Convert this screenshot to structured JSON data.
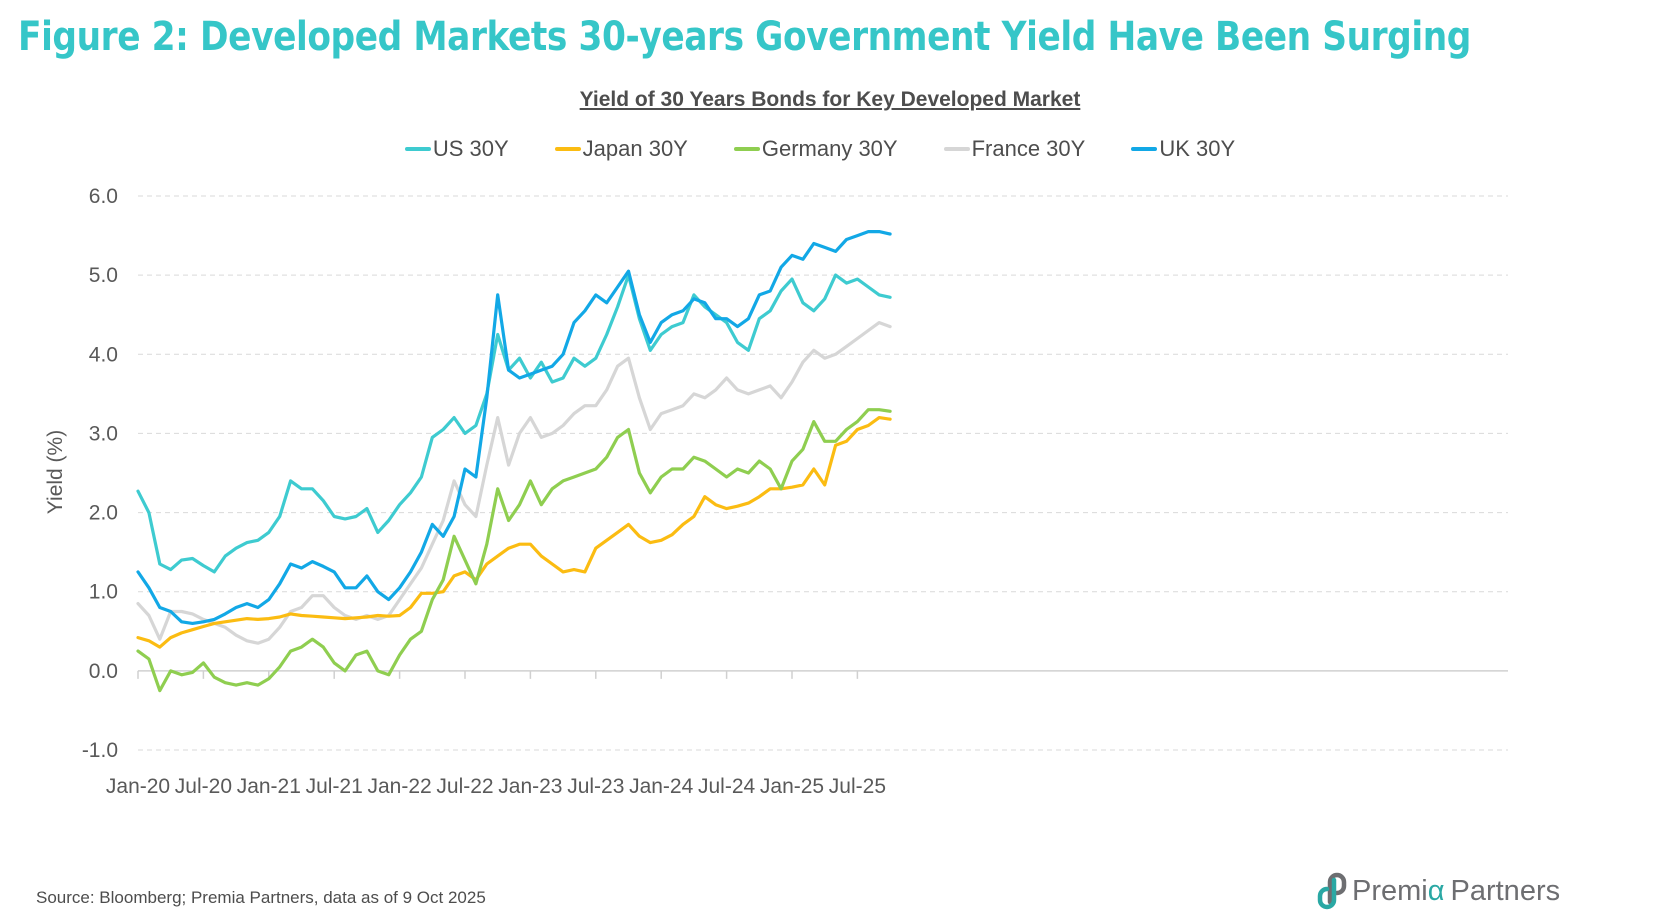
{
  "header": {
    "title": "Figure 2: Developed Markets 30-years Government Yield Have Been Surging"
  },
  "footer": {
    "source": "Source: Bloomberg; Premia Partners, data as of 9 Oct 2025",
    "logo_part1": "Premi",
    "logo_alpha": "α",
    "logo_part2": "Partners"
  },
  "chart_data": {
    "type": "line",
    "title": "Yield of 30 Years Bonds for Key Developed Market",
    "xlabel": "",
    "ylabel": "Yield (%)",
    "ylim": [
      -1.0,
      6.0
    ],
    "yticks": [
      -1.0,
      0.0,
      1.0,
      2.0,
      3.0,
      4.0,
      5.0,
      6.0
    ],
    "ytick_labels": [
      "-1.0",
      "0.0",
      "1.0",
      "2.0",
      "3.0",
      "4.0",
      "5.0",
      "6.0"
    ],
    "xtick_labels": [
      "Jan-20",
      "Jul-20",
      "Jan-21",
      "Jul-21",
      "Jan-22",
      "Jul-22",
      "Jan-23",
      "Jul-23",
      "Jan-24",
      "Jul-24",
      "Jan-25",
      "Jul-25"
    ],
    "grid": "horizontal-dashed",
    "legend_position": "top-center",
    "x": [
      "Jan-20",
      "Feb-20",
      "Mar-20",
      "Apr-20",
      "May-20",
      "Jun-20",
      "Jul-20",
      "Aug-20",
      "Sep-20",
      "Oct-20",
      "Nov-20",
      "Dec-20",
      "Jan-21",
      "Feb-21",
      "Mar-21",
      "Apr-21",
      "May-21",
      "Jun-21",
      "Jul-21",
      "Aug-21",
      "Sep-21",
      "Oct-21",
      "Nov-21",
      "Dec-21",
      "Jan-22",
      "Feb-22",
      "Mar-22",
      "Apr-22",
      "May-22",
      "Jun-22",
      "Jul-22",
      "Aug-22",
      "Sep-22",
      "Oct-22",
      "Nov-22",
      "Dec-22",
      "Jan-23",
      "Feb-23",
      "Mar-23",
      "Apr-23",
      "May-23",
      "Jun-23",
      "Jul-23",
      "Aug-23",
      "Sep-23",
      "Oct-23",
      "Nov-23",
      "Dec-23",
      "Jan-24",
      "Feb-24",
      "Mar-24",
      "Apr-24",
      "May-24",
      "Jun-24",
      "Jul-24",
      "Aug-24",
      "Sep-24",
      "Oct-24",
      "Nov-24",
      "Dec-24",
      "Jan-25",
      "Feb-25",
      "Mar-25",
      "Apr-25",
      "May-25",
      "Jun-25",
      "Jul-25",
      "Aug-25",
      "Sep-25",
      "Oct-25"
    ],
    "series": [
      {
        "name": "US 30Y",
        "color": "#3ecbd0",
        "values": [
          2.27,
          2.0,
          1.35,
          1.28,
          1.4,
          1.42,
          1.33,
          1.25,
          1.45,
          1.55,
          1.62,
          1.65,
          1.75,
          1.95,
          2.4,
          2.3,
          2.3,
          2.15,
          1.95,
          1.92,
          1.95,
          2.05,
          1.75,
          1.9,
          2.1,
          2.25,
          2.45,
          2.95,
          3.05,
          3.2,
          3.0,
          3.1,
          3.5,
          4.25,
          3.8,
          3.95,
          3.7,
          3.9,
          3.65,
          3.7,
          3.95,
          3.85,
          3.95,
          4.25,
          4.6,
          5.0,
          4.45,
          4.05,
          4.25,
          4.35,
          4.4,
          4.75,
          4.6,
          4.5,
          4.4,
          4.15,
          4.05,
          4.45,
          4.55,
          4.8,
          4.95,
          4.65,
          4.55,
          4.7,
          5.0,
          4.9,
          4.95,
          4.85,
          4.75,
          4.72
        ]
      },
      {
        "name": "Japan 30Y",
        "color": "#fbbc12",
        "values": [
          0.42,
          0.38,
          0.3,
          0.42,
          0.48,
          0.52,
          0.56,
          0.6,
          0.62,
          0.64,
          0.66,
          0.65,
          0.66,
          0.68,
          0.72,
          0.7,
          0.69,
          0.68,
          0.67,
          0.66,
          0.67,
          0.68,
          0.7,
          0.69,
          0.7,
          0.8,
          0.98,
          0.98,
          1.0,
          1.2,
          1.25,
          1.15,
          1.35,
          1.45,
          1.55,
          1.6,
          1.6,
          1.45,
          1.35,
          1.25,
          1.28,
          1.25,
          1.55,
          1.65,
          1.75,
          1.85,
          1.7,
          1.62,
          1.65,
          1.72,
          1.85,
          1.95,
          2.2,
          2.1,
          2.05,
          2.08,
          2.12,
          2.2,
          2.3,
          2.3,
          2.32,
          2.35,
          2.55,
          2.35,
          2.85,
          2.9,
          3.05,
          3.1,
          3.2,
          3.18
        ]
      },
      {
        "name": "Germany 30Y",
        "color": "#8fce50",
        "values": [
          0.25,
          0.15,
          -0.25,
          0.0,
          -0.05,
          -0.02,
          0.1,
          -0.08,
          -0.15,
          -0.18,
          -0.15,
          -0.18,
          -0.1,
          0.05,
          0.25,
          0.3,
          0.4,
          0.3,
          0.1,
          0.0,
          0.2,
          0.25,
          0.0,
          -0.05,
          0.2,
          0.4,
          0.5,
          0.9,
          1.15,
          1.7,
          1.4,
          1.1,
          1.6,
          2.3,
          1.9,
          2.1,
          2.4,
          2.1,
          2.3,
          2.4,
          2.45,
          2.5,
          2.55,
          2.7,
          2.95,
          3.05,
          2.5,
          2.25,
          2.45,
          2.55,
          2.55,
          2.7,
          2.65,
          2.55,
          2.45,
          2.55,
          2.5,
          2.65,
          2.55,
          2.3,
          2.65,
          2.8,
          3.15,
          2.9,
          2.9,
          3.05,
          3.15,
          3.3,
          3.3,
          3.28
        ]
      },
      {
        "name": "France 30Y",
        "color": "#d6d6d6",
        "values": [
          0.85,
          0.7,
          0.4,
          0.75,
          0.75,
          0.72,
          0.65,
          0.6,
          0.55,
          0.45,
          0.38,
          0.35,
          0.4,
          0.55,
          0.75,
          0.8,
          0.95,
          0.95,
          0.8,
          0.7,
          0.65,
          0.7,
          0.65,
          0.7,
          0.9,
          1.1,
          1.3,
          1.6,
          1.9,
          2.4,
          2.1,
          1.95,
          2.6,
          3.2,
          2.6,
          3.0,
          3.2,
          2.95,
          3.0,
          3.1,
          3.25,
          3.35,
          3.35,
          3.55,
          3.85,
          3.95,
          3.45,
          3.05,
          3.25,
          3.3,
          3.35,
          3.5,
          3.45,
          3.55,
          3.7,
          3.55,
          3.5,
          3.55,
          3.6,
          3.45,
          3.65,
          3.9,
          4.05,
          3.95,
          4.0,
          4.1,
          4.2,
          4.3,
          4.4,
          4.35
        ]
      },
      {
        "name": "UK 30Y",
        "color": "#12a8e6",
        "values": [
          1.25,
          1.05,
          0.8,
          0.75,
          0.62,
          0.6,
          0.62,
          0.65,
          0.72,
          0.8,
          0.85,
          0.8,
          0.9,
          1.1,
          1.35,
          1.3,
          1.38,
          1.32,
          1.25,
          1.05,
          1.05,
          1.2,
          1.0,
          0.9,
          1.05,
          1.25,
          1.5,
          1.85,
          1.7,
          1.95,
          2.55,
          2.45,
          3.45,
          4.75,
          3.8,
          3.7,
          3.75,
          3.8,
          3.85,
          4.0,
          4.4,
          4.55,
          4.75,
          4.65,
          4.85,
          5.05,
          4.5,
          4.15,
          4.4,
          4.5,
          4.55,
          4.7,
          4.65,
          4.45,
          4.45,
          4.35,
          4.45,
          4.75,
          4.8,
          5.1,
          5.25,
          5.2,
          5.4,
          5.35,
          5.3,
          5.45,
          5.5,
          5.55,
          5.55,
          5.52
        ]
      }
    ]
  }
}
